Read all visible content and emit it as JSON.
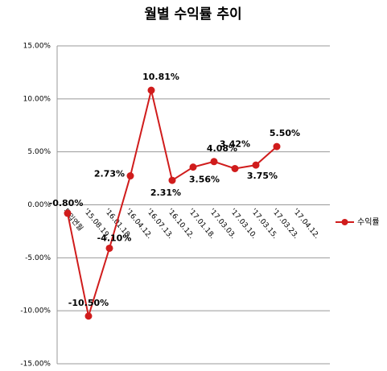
{
  "chart_data": {
    "type": "line",
    "title": "월별 수익률 추이",
    "categories": [
      "투입연월",
      "'15.08.19.",
      "'16.01.18.",
      "'16.04.12.",
      "'16.07.13.",
      "'16.10.12.",
      "'17.01.18.",
      "'17.03.03.",
      "'17.03.10.",
      "'17.03.15.",
      "'17.03.23.",
      "'17.04.12."
    ],
    "series": [
      {
        "name": "수익률",
        "color": "#d01c1c",
        "values": [
          -0.8,
          -10.5,
          -4.1,
          2.73,
          10.81,
          2.31,
          3.56,
          4.08,
          3.42,
          3.75,
          5.5,
          null
        ],
        "value_labels": [
          "-0.80%",
          "-10.50%",
          "-4.10%",
          "2.73%",
          "10.81%",
          "2.31%",
          "3.56%",
          "4.08%",
          "3.42%",
          "3.75%",
          "5.50%",
          null
        ]
      }
    ],
    "ylim": [
      -15,
      15
    ],
    "yticks": [
      {
        "value": -15,
        "label": "-15.00%"
      },
      {
        "value": -10,
        "label": "-10.00%"
      },
      {
        "value": -5,
        "label": "-5.00%"
      },
      {
        "value": 0,
        "label": "0.00%"
      },
      {
        "value": 5,
        "label": "5.00%"
      },
      {
        "value": 10,
        "label": "10.00%"
      },
      {
        "value": 15,
        "label": "15.00%"
      }
    ],
    "grid": true,
    "legend": "right"
  }
}
